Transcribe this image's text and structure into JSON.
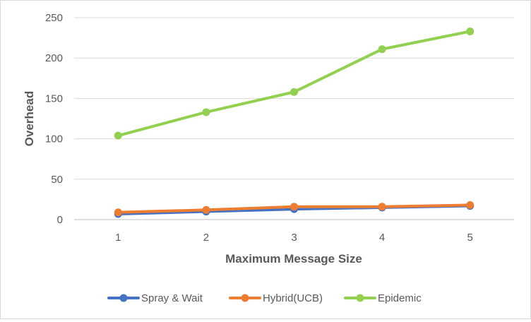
{
  "chart_data": {
    "type": "line",
    "title": "",
    "xlabel": "Maximum Message Size",
    "ylabel": "Overhead",
    "x": [
      1,
      2,
      3,
      4,
      5
    ],
    "ylim": [
      0,
      250
    ],
    "yticks": [
      0,
      50,
      100,
      150,
      200,
      250
    ],
    "grid": true,
    "legend_position": "bottom",
    "series": [
      {
        "name": "Spray & Wait",
        "color": "#4472C4",
        "values": [
          7,
          10,
          13,
          15,
          17
        ]
      },
      {
        "name": "Hybrid(UCB)",
        "color": "#ED7D31",
        "values": [
          9,
          12,
          16,
          16,
          18
        ]
      },
      {
        "name": "Epidemic",
        "color": "#92D050",
        "values": [
          104,
          133,
          158,
          211,
          233
        ]
      }
    ]
  }
}
